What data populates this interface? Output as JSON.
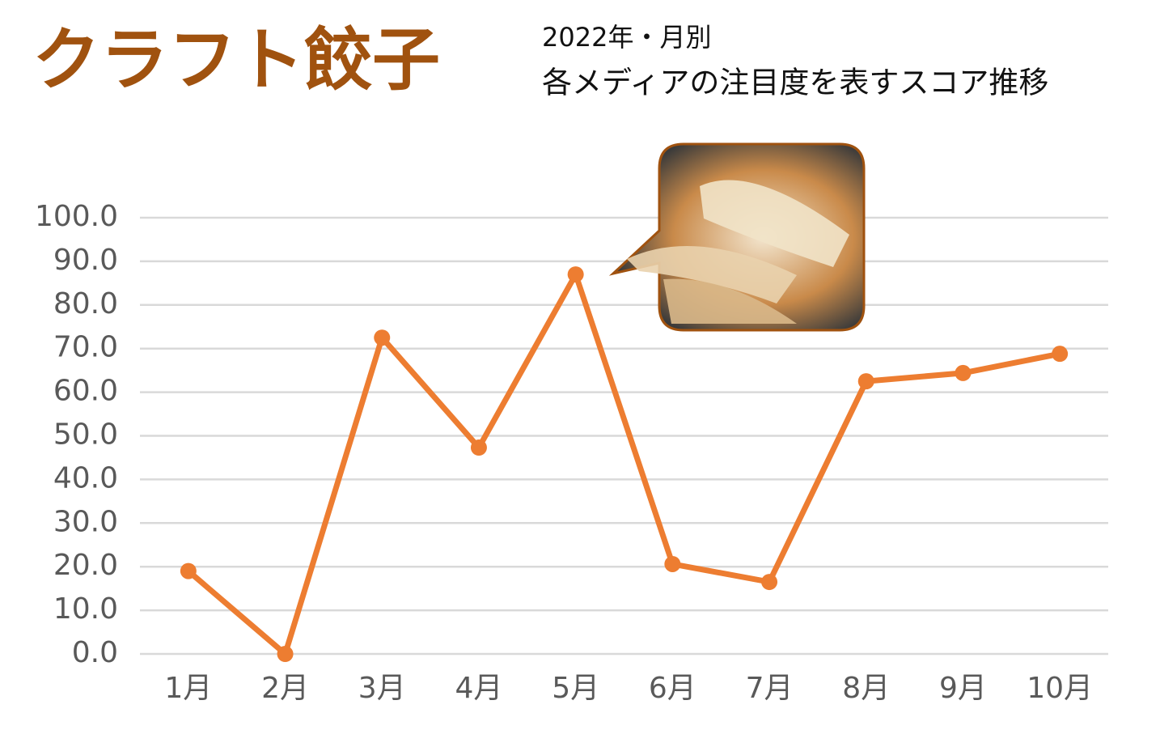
{
  "chart_data": {
    "type": "line",
    "title": "クラフト餃子",
    "subtitle": [
      "2022年・月別",
      "各メディアの注目度を表すスコア推移"
    ],
    "categories": [
      "1月",
      "2月",
      "3月",
      "4月",
      "5月",
      "6月",
      "7月",
      "8月",
      "9月",
      "10月"
    ],
    "values": [
      19,
      0,
      72.5,
      47.3,
      87,
      20.6,
      16.5,
      62.5,
      64.4,
      68.8
    ],
    "color": "#ed7d31",
    "ylim": [
      0,
      100
    ],
    "yticks": [
      {
        "value": 0,
        "label": "0.0"
      },
      {
        "value": 10,
        "label": "10.0"
      },
      {
        "value": 20,
        "label": "20.0"
      },
      {
        "value": 30,
        "label": "30.0"
      },
      {
        "value": 40,
        "label": "40.0"
      },
      {
        "value": 50,
        "label": "50.0"
      },
      {
        "value": 60,
        "label": "60.0"
      },
      {
        "value": 70,
        "label": "70.0"
      },
      {
        "value": 80,
        "label": "80.0"
      },
      {
        "value": 90,
        "label": "90.0"
      },
      {
        "value": 100,
        "label": "100.0"
      }
    ],
    "grid": true
  }
}
